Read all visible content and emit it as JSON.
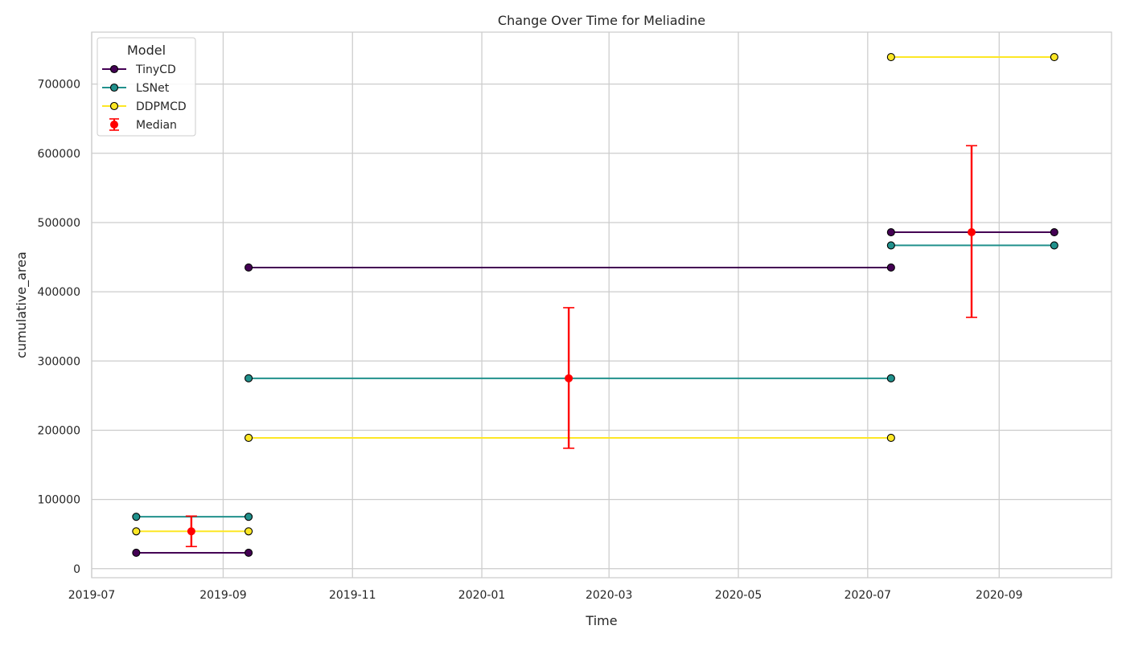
{
  "chart_data": {
    "type": "line",
    "title": "Change Over Time for Meliadine",
    "xlabel": "Time",
    "ylabel": "cumulative_area",
    "xlim": [
      "2019-07-01",
      "2020-10-24"
    ],
    "ylim": [
      -13000,
      775000
    ],
    "x_ticks": [
      "2019-07",
      "2019-09",
      "2019-11",
      "2020-01",
      "2020-03",
      "2020-05",
      "2020-07",
      "2020-09"
    ],
    "y_ticks": [
      0,
      100000,
      200000,
      300000,
      400000,
      500000,
      600000,
      700000
    ],
    "grid": true,
    "legend": {
      "title": "Model",
      "position": "top-left"
    },
    "series": [
      {
        "name": "TinyCD",
        "color": "#440154",
        "segments": [
          [
            {
              "x": "2019-07-22",
              "y": 23000
            },
            {
              "x": "2019-09-13",
              "y": 23000
            }
          ],
          [
            {
              "x": "2019-09-13",
              "y": 435000
            },
            {
              "x": "2020-07-12",
              "y": 435000
            }
          ],
          [
            {
              "x": "2020-07-12",
              "y": 486000
            },
            {
              "x": "2020-09-27",
              "y": 486000
            }
          ]
        ]
      },
      {
        "name": "LSNet",
        "color": "#21918c",
        "segments": [
          [
            {
              "x": "2019-07-22",
              "y": 75000
            },
            {
              "x": "2019-09-13",
              "y": 75000
            }
          ],
          [
            {
              "x": "2019-09-13",
              "y": 275000
            },
            {
              "x": "2020-07-12",
              "y": 275000
            }
          ],
          [
            {
              "x": "2020-07-12",
              "y": 467000
            },
            {
              "x": "2020-09-27",
              "y": 467000
            }
          ]
        ]
      },
      {
        "name": "DDPMCD",
        "color": "#fde725",
        "segments": [
          [
            {
              "x": "2019-07-22",
              "y": 54000
            },
            {
              "x": "2019-09-13",
              "y": 54000
            }
          ],
          [
            {
              "x": "2019-09-13",
              "y": 189000
            },
            {
              "x": "2020-07-12",
              "y": 189000
            }
          ],
          [
            {
              "x": "2020-07-12",
              "y": 739000
            },
            {
              "x": "2020-09-27",
              "y": 739000
            }
          ]
        ]
      }
    ],
    "median": {
      "name": "Median",
      "color": "#ff0000",
      "points": [
        {
          "x": "2019-08-17",
          "y": 54000,
          "low": 32000,
          "high": 76000
        },
        {
          "x": "2020-02-11",
          "y": 275000,
          "low": 174000,
          "high": 377000
        },
        {
          "x": "2020-08-19",
          "y": 486000,
          "low": 363000,
          "high": 611000
        }
      ]
    }
  }
}
